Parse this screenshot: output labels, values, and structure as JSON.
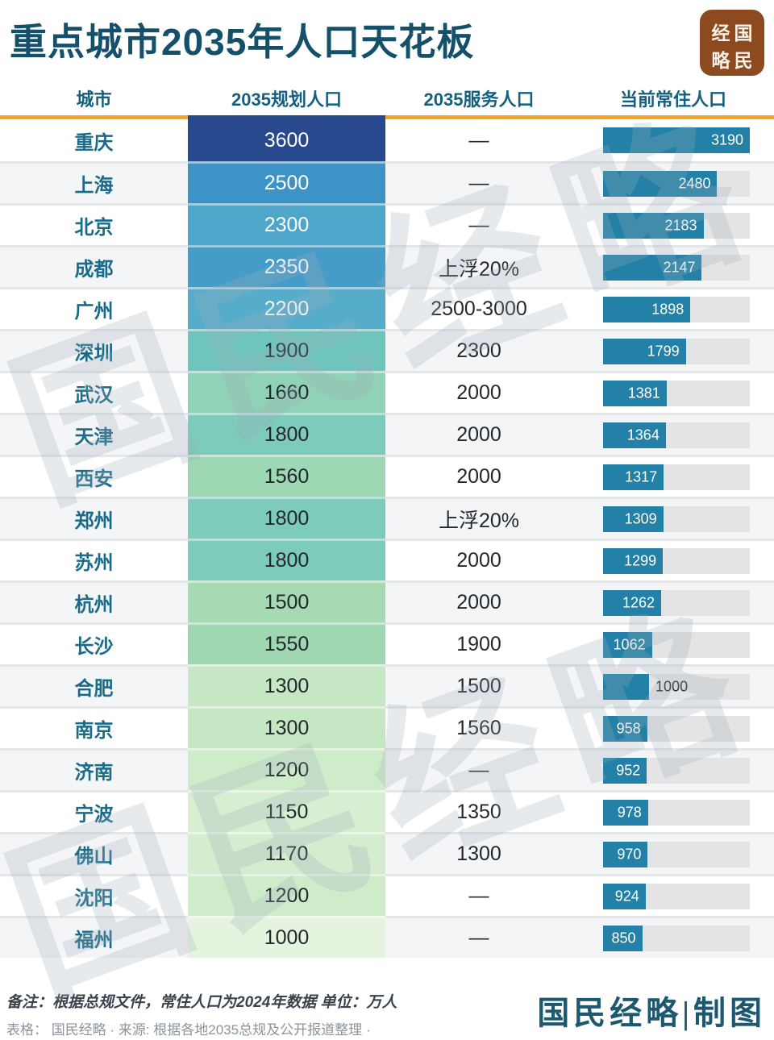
{
  "title": "重点城市2035年人口天花板",
  "logo": {
    "chars": [
      "经",
      "国",
      "略",
      "民"
    ]
  },
  "theme": {
    "title_color": "#15506B",
    "header_color": "#14607E",
    "city_color": "#1A6B89",
    "accent_orange": "#F6A325",
    "bar_color": "#2380A6",
    "credit_color": "#1B5872",
    "logo_bg": "#8C4A1E"
  },
  "watermark": {
    "text": "国民经略"
  },
  "footer": {
    "note": "备注：根据总规文件，常住人口为2024年数据 单位：万人",
    "source": "表格： 国民经略 · 来源: 根据各地2035总规及公开报道整理 ·",
    "credit": "国民经略|制图"
  },
  "chart_data": {
    "type": "table",
    "title": "重点城市2035年人口天花板",
    "unit": "万人",
    "columns": [
      "城市",
      "2035规划人口",
      "2035服务人口",
      "当前常住人口"
    ],
    "bar_max": 3190,
    "rows": [
      {
        "city": "重庆",
        "plan_2035": 3600,
        "service_2035": "—",
        "current": 3190,
        "plan_color": "#28498E",
        "plan_text_light": true,
        "bar_label_outside": false
      },
      {
        "city": "上海",
        "plan_2035": 2500,
        "service_2035": "—",
        "current": 2480,
        "plan_color": "#3E93C6",
        "plan_text_light": true,
        "bar_label_outside": false
      },
      {
        "city": "北京",
        "plan_2035": 2300,
        "service_2035": "—",
        "current": 2183,
        "plan_color": "#4FA6CB",
        "plan_text_light": true,
        "bar_label_outside": false
      },
      {
        "city": "成都",
        "plan_2035": 2350,
        "service_2035": "上浮20%",
        "current": 2147,
        "plan_color": "#459CC8",
        "plan_text_light": true,
        "bar_label_outside": false
      },
      {
        "city": "广州",
        "plan_2035": 2200,
        "service_2035": "2500-3000",
        "current": 1898,
        "plan_color": "#55ACCB",
        "plan_text_light": true,
        "bar_label_outside": false
      },
      {
        "city": "深圳",
        "plan_2035": 1900,
        "service_2035": "2300",
        "current": 1799,
        "plan_color": "#6FC5BD",
        "plan_text_light": false,
        "bar_label_outside": false
      },
      {
        "city": "武汉",
        "plan_2035": 1660,
        "service_2035": "2000",
        "current": 1381,
        "plan_color": "#90D2B6",
        "plan_text_light": false,
        "bar_label_outside": false
      },
      {
        "city": "天津",
        "plan_2035": 1800,
        "service_2035": "2000",
        "current": 1364,
        "plan_color": "#7DCBBA",
        "plan_text_light": false,
        "bar_label_outside": false
      },
      {
        "city": "西安",
        "plan_2035": 1560,
        "service_2035": "2000",
        "current": 1317,
        "plan_color": "#9DD7B4",
        "plan_text_light": false,
        "bar_label_outside": false
      },
      {
        "city": "郑州",
        "plan_2035": 1800,
        "service_2035": "上浮20%",
        "current": 1309,
        "plan_color": "#7DCBBA",
        "plan_text_light": false,
        "bar_label_outside": false
      },
      {
        "city": "苏州",
        "plan_2035": 1800,
        "service_2035": "2000",
        "current": 1299,
        "plan_color": "#7DCBBA",
        "plan_text_light": false,
        "bar_label_outside": false
      },
      {
        "city": "杭州",
        "plan_2035": 1500,
        "service_2035": "2000",
        "current": 1262,
        "plan_color": "#A6DAB3",
        "plan_text_light": false,
        "bar_label_outside": false
      },
      {
        "city": "长沙",
        "plan_2035": 1550,
        "service_2035": "1900",
        "current": 1062,
        "plan_color": "#9ED7B2",
        "plan_text_light": false,
        "bar_label_outside": false
      },
      {
        "city": "合肥",
        "plan_2035": 1300,
        "service_2035": "1500",
        "current": 1000,
        "plan_color": "#C5E7C4",
        "plan_text_light": false,
        "bar_label_outside": true
      },
      {
        "city": "南京",
        "plan_2035": 1300,
        "service_2035": "1560",
        "current": 958,
        "plan_color": "#C5E7C4",
        "plan_text_light": false,
        "bar_label_outside": false
      },
      {
        "city": "济南",
        "plan_2035": 1200,
        "service_2035": "—",
        "current": 952,
        "plan_color": "#CFECCA",
        "plan_text_light": false,
        "bar_label_outside": false
      },
      {
        "city": "宁波",
        "plan_2035": 1150,
        "service_2035": "1350",
        "current": 978,
        "plan_color": "#D6EFD0",
        "plan_text_light": false,
        "bar_label_outside": false
      },
      {
        "city": "佛山",
        "plan_2035": 1170,
        "service_2035": "1300",
        "current": 970,
        "plan_color": "#D3EDCE",
        "plan_text_light": false,
        "bar_label_outside": false
      },
      {
        "city": "沈阳",
        "plan_2035": 1200,
        "service_2035": "—",
        "current": 924,
        "plan_color": "#CFECCA",
        "plan_text_light": false,
        "bar_label_outside": false
      },
      {
        "city": "福州",
        "plan_2035": 1000,
        "service_2035": "—",
        "current": 850,
        "plan_color": "#E4F4DE",
        "plan_text_light": false,
        "bar_label_outside": false
      }
    ]
  }
}
